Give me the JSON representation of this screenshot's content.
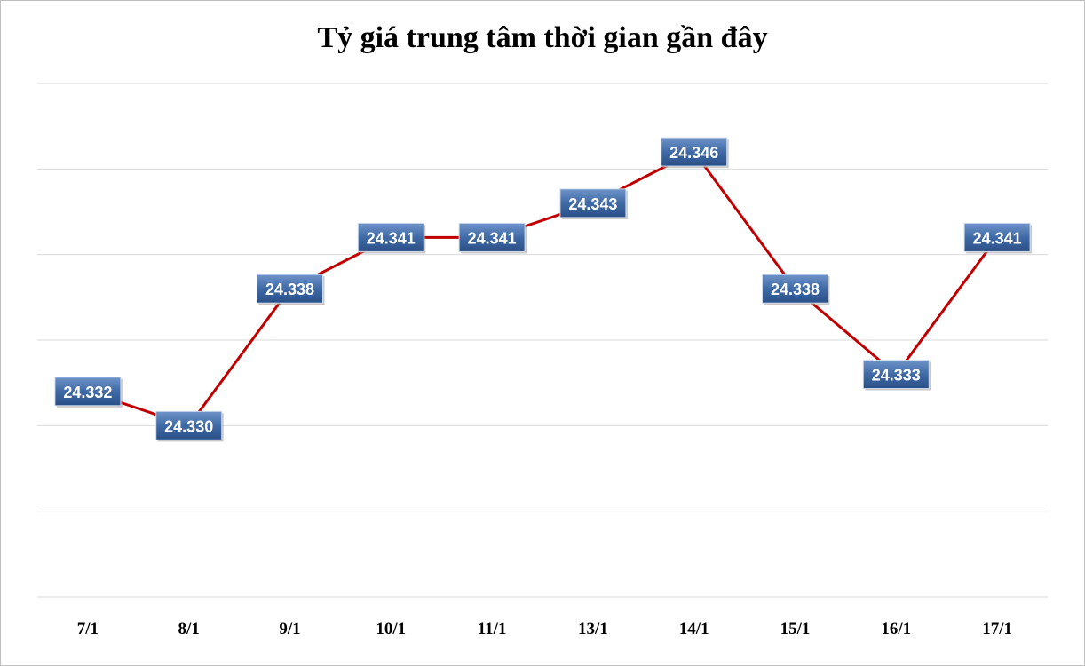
{
  "chart_data": {
    "type": "line",
    "title": "Tỷ giá trung tâm thời gian gần đây",
    "categories": [
      "7/1",
      "8/1",
      "9/1",
      "10/1",
      "11/1",
      "13/1",
      "14/1",
      "15/1",
      "16/1",
      "17/1"
    ],
    "series": [
      {
        "values": [
          24332,
          24330,
          24338,
          24341,
          24341,
          24343,
          24346,
          24338,
          24333,
          24341
        ],
        "labels": [
          "24.332",
          "24.330",
          "24.338",
          "24.341",
          "24.341",
          "24.343",
          "24.346",
          "24.338",
          "24.333",
          "24.341"
        ],
        "color": "#c00000"
      }
    ],
    "ylim": [
      24320,
      24350
    ],
    "grid": true,
    "legend": "none",
    "label_color": "#2f5d95"
  }
}
